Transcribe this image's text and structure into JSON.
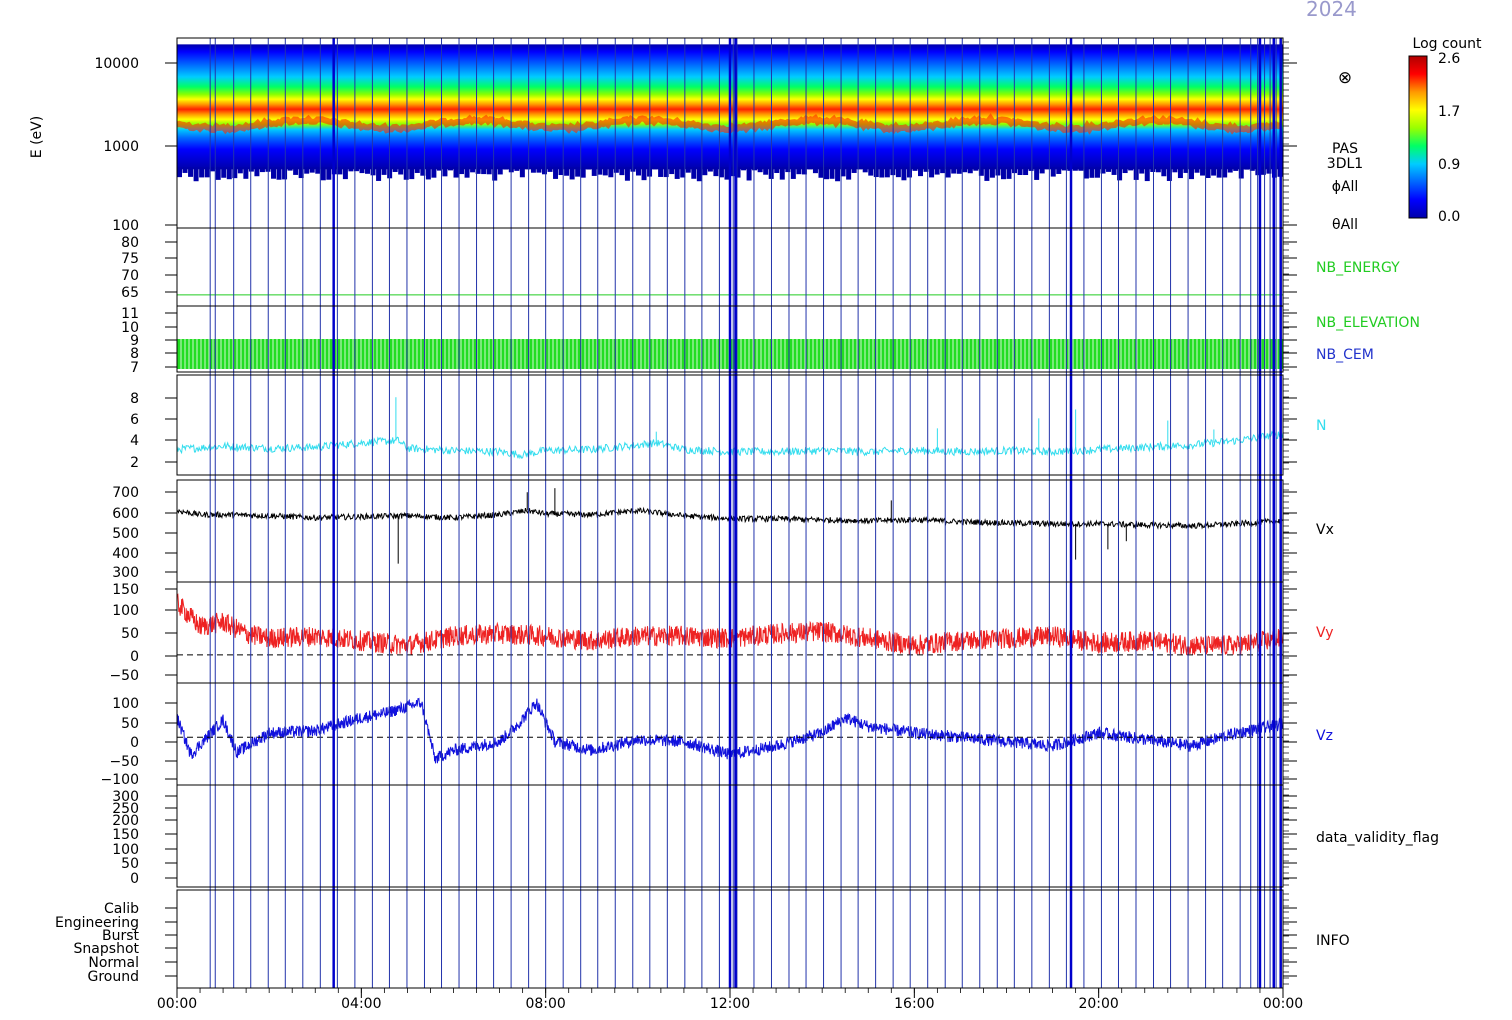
{
  "header": {
    "date_label": "2024"
  },
  "colorbar": {
    "title": "Log count",
    "ticks": [
      "2.6",
      "1.7",
      "0.9",
      "0.0"
    ],
    "stops": [
      "#ffffff",
      "#0000aa",
      "#0000ff",
      "#0066ff",
      "#00ccff",
      "#00ff66",
      "#99ff00",
      "#ffff00",
      "#ff9900",
      "#ff0000",
      "#b00000"
    ]
  },
  "timeline": {
    "x_ticks": [
      "00:00",
      "04:00",
      "08:00",
      "12:00",
      "16:00",
      "20:00",
      "00:00"
    ],
    "x_range_hours": [
      0,
      24
    ],
    "mode_switch_hours": [
      0.72,
      0.83,
      1.23,
      1.6,
      1.98,
      2.35,
      2.73,
      3.11,
      3.48,
      3.86,
      4.24,
      4.61,
      4.99,
      5.37,
      5.74,
      6.12,
      6.5,
      6.87,
      7.25,
      7.63,
      8.0,
      8.38,
      8.76,
      9.13,
      9.51,
      9.89,
      10.26,
      10.64,
      11.02,
      11.39,
      11.77,
      12.07,
      12.15,
      12.52,
      12.9,
      13.28,
      13.65,
      14.03,
      14.41,
      14.78,
      15.16,
      15.54,
      15.91,
      16.29,
      16.67,
      17.04,
      17.42,
      17.8,
      18.17,
      18.55,
      18.93,
      19.3,
      19.68,
      20.06,
      20.43,
      20.81,
      21.19,
      21.56,
      21.94,
      22.32,
      22.69,
      23.07,
      23.3,
      23.45,
      23.6,
      23.72,
      23.85,
      23.95
    ],
    "thick_lines_hours": [
      3.4,
      12.0,
      12.12,
      19.4,
      23.5,
      23.8,
      23.95
    ]
  },
  "chart_data": [
    {
      "type": "heatmap",
      "panel": "spectrogram",
      "ylabel": "E (eV)",
      "yscale": "log",
      "ylim": [
        100,
        16000
      ],
      "y_ticks": [
        "10000",
        "1000",
        "100"
      ],
      "labels": [
        "PAS",
        "3DL1",
        "ϕAll",
        "θAll"
      ],
      "symbol": "⊗",
      "band_center_ev": 1600,
      "band_edges_ev": [
        480,
        13500
      ]
    },
    {
      "type": "line",
      "panel": "nb-energy",
      "name": "NB_ENERGY",
      "color": "#22cc22",
      "ylim": [
        61,
        82
      ],
      "y_ticks": [
        "80",
        "75",
        "70",
        "65"
      ],
      "constant_value": 64
    },
    {
      "type": "area",
      "panel": "nb-elevation-cem",
      "names": [
        "NB_ELEVATION",
        "NB_CEM"
      ],
      "name_colors": [
        "#22cc22",
        "#2233cc"
      ],
      "color": "#22dd22",
      "ylim": [
        6.8,
        11.2
      ],
      "y_ticks": [
        "11",
        "10",
        "9",
        "8",
        "7"
      ],
      "band": [
        7,
        9
      ]
    },
    {
      "type": "line",
      "panel": "density",
      "name": "N",
      "color": "#33ddee",
      "ylim": [
        0.5,
        9.5
      ],
      "y_ticks": [
        "8",
        "6",
        "4",
        "2"
      ],
      "x": [
        0,
        1,
        2,
        3,
        4,
        4.8,
        5,
        6,
        7,
        7.5,
        8,
        9,
        10,
        10.4,
        11,
        12,
        13,
        14,
        15,
        16,
        17,
        18,
        19,
        20,
        21,
        22,
        23,
        24
      ],
      "values": [
        2.8,
        3.1,
        2.9,
        3.0,
        3.4,
        3.6,
        2.9,
        2.7,
        2.6,
        2.3,
        2.7,
        2.8,
        3.2,
        3.4,
        2.8,
        2.6,
        2.6,
        2.7,
        2.6,
        2.7,
        2.6,
        2.7,
        2.6,
        2.8,
        3.0,
        3.2,
        3.6,
        4.2
      ],
      "spikes": [
        [
          4.75,
          7.5
        ],
        [
          10.4,
          4.4
        ],
        [
          16.5,
          4.7
        ],
        [
          18.7,
          5.6
        ],
        [
          19.5,
          6.4
        ],
        [
          21.5,
          5.4
        ],
        [
          22.5,
          4.6
        ]
      ]
    },
    {
      "type": "line",
      "panel": "vx",
      "name": "Vx",
      "color": "#000000",
      "ylim": [
        260,
        760
      ],
      "y_ticks": [
        "700",
        "600",
        "500",
        "400",
        "300"
      ],
      "x": [
        0,
        0.5,
        1,
        2,
        3,
        4,
        5,
        6,
        7,
        7.6,
        8,
        9,
        10,
        11,
        12,
        13,
        14,
        15,
        16,
        17,
        18,
        19,
        20,
        21,
        22,
        23,
        24
      ],
      "values": [
        610,
        590,
        590,
        585,
        575,
        580,
        585,
        575,
        590,
        610,
        595,
        590,
        610,
        585,
        570,
        570,
        565,
        560,
        565,
        555,
        550,
        545,
        545,
        540,
        535,
        545,
        560
      ],
      "spikes": [
        [
          4.8,
          350
        ],
        [
          7.6,
          700
        ],
        [
          8.2,
          720
        ],
        [
          15.5,
          660
        ],
        [
          19.5,
          370
        ],
        [
          20.2,
          420
        ],
        [
          20.6,
          460
        ]
      ]
    },
    {
      "type": "line",
      "panel": "vy",
      "name": "Vy",
      "color": "#ee2222",
      "ylim": [
        -60,
        155
      ],
      "y_ticks": [
        "150",
        "100",
        "50",
        "0",
        "−50"
      ],
      "zero_line": true,
      "x": [
        0,
        0.5,
        1,
        1.5,
        2,
        3,
        4,
        5,
        6,
        7,
        8,
        9,
        10,
        11,
        12,
        13,
        14,
        15,
        16,
        17,
        18,
        19,
        20,
        21,
        22,
        23,
        24
      ],
      "values": [
        110,
        60,
        70,
        45,
        35,
        40,
        30,
        20,
        40,
        45,
        40,
        30,
        40,
        40,
        35,
        45,
        50,
        35,
        20,
        30,
        35,
        40,
        25,
        30,
        20,
        20,
        35
      ]
    },
    {
      "type": "line",
      "panel": "vz",
      "name": "Vz",
      "color": "#1111dd",
      "ylim": [
        -110,
        125
      ],
      "y_ticks": [
        "100",
        "50",
        "0",
        "−50",
        "−100"
      ],
      "zero_line": true,
      "x": [
        0,
        0.3,
        1,
        1.3,
        2,
        3,
        4,
        4.5,
        5.3,
        5.6,
        6,
        7,
        7.4,
        7.8,
        8.2,
        9,
        10,
        11,
        12,
        13,
        14,
        14.5,
        15,
        16,
        17,
        18,
        19,
        20,
        21,
        22,
        23,
        24
      ],
      "values": [
        45,
        -40,
        40,
        -35,
        10,
        15,
        45,
        55,
        80,
        -50,
        -30,
        -10,
        30,
        80,
        -10,
        -30,
        -5,
        -10,
        -40,
        -20,
        10,
        45,
        25,
        10,
        0,
        -10,
        -20,
        10,
        -5,
        -20,
        10,
        30
      ]
    },
    {
      "type": "line",
      "panel": "data-validity",
      "name": "data_validity_flag",
      "ylim": [
        -20,
        310
      ],
      "y_ticks": [
        "300",
        "250",
        "200",
        "150",
        "100",
        "50",
        "0"
      ]
    },
    {
      "type": "table",
      "panel": "info",
      "name": "INFO",
      "modes": [
        "Calib",
        "Engineering",
        "Burst",
        "Snapshot",
        "Normal",
        "Ground"
      ]
    }
  ]
}
